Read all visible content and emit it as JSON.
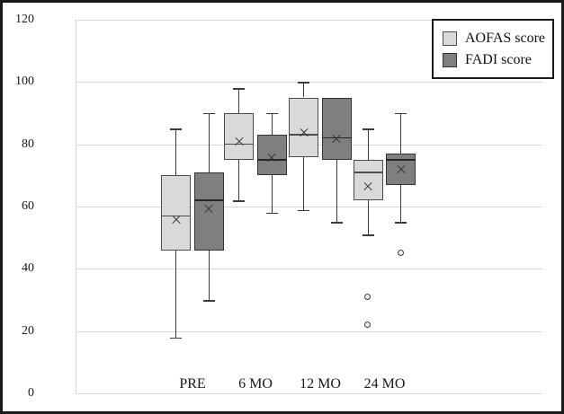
{
  "chart_data": {
    "type": "boxplot",
    "title": "",
    "categories": [
      "PRE",
      "6 MO",
      "12 MO",
      "24 MO"
    ],
    "ylim": [
      0,
      120
    ],
    "yticks": [
      0,
      20,
      40,
      60,
      80,
      100,
      120
    ],
    "grid": "horizontal",
    "grid_color": "#d9d9d9",
    "legend_position": "top-right",
    "series": [
      {
        "name": "AOFAS score",
        "fill": "#d9d9d9",
        "border": "#4d4d4d",
        "median_color": "#4d4d4d",
        "boxes": [
          {
            "category": "PRE",
            "whisker_low": 18,
            "q1": 46,
            "median": 57,
            "mean": 56,
            "q3": 70,
            "whisker_high": 85,
            "outliers": []
          },
          {
            "category": "6 MO",
            "whisker_low": 62,
            "q1": 75,
            "median": 80,
            "mean": 81,
            "q3": 90,
            "whisker_high": 98,
            "outliers": []
          },
          {
            "category": "12 MO",
            "whisker_low": 59,
            "q1": 76,
            "median": 83,
            "mean": 84,
            "q3": 95,
            "whisker_high": 100,
            "outliers": []
          },
          {
            "category": "24 MO",
            "whisker_low": 51,
            "q1": 62,
            "median": 71,
            "mean": 66.5,
            "q3": 75,
            "whisker_high": 85,
            "outliers": [
              31,
              22
            ]
          }
        ]
      },
      {
        "name": "FADI score",
        "fill": "#7f7f7f",
        "border": "#333333",
        "median_color": "#262626",
        "boxes": [
          {
            "category": "PRE",
            "whisker_low": 30,
            "q1": 46,
            "median": 62,
            "mean": 59.5,
            "q3": 71,
            "whisker_high": 90,
            "outliers": []
          },
          {
            "category": "6 MO",
            "whisker_low": 58,
            "q1": 70,
            "median": 75,
            "mean": 76,
            "q3": 83,
            "whisker_high": 90,
            "outliers": []
          },
          {
            "category": "12 MO",
            "whisker_low": 55,
            "q1": 75,
            "median": 82,
            "mean": 82,
            "q3": 95,
            "whisker_high": 95,
            "outliers": []
          },
          {
            "category": "24 MO",
            "whisker_low": 55,
            "q1": 67,
            "median": 75,
            "mean": 72,
            "q3": 77,
            "whisker_high": 90,
            "outliers": [
              45
            ]
          }
        ]
      }
    ]
  }
}
